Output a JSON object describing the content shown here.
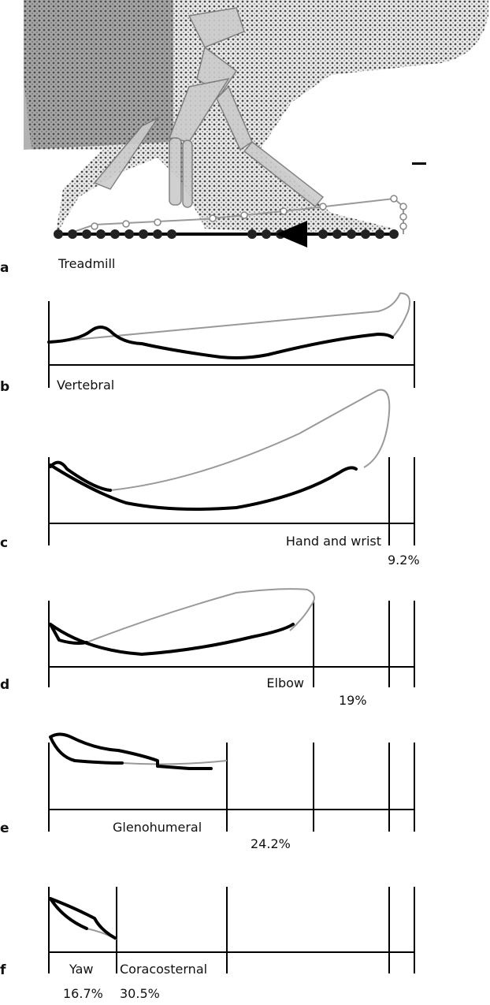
{
  "panels": [
    {
      "letter": "a",
      "label": "Treadmill"
    },
    {
      "letter": "b",
      "label": "Vertebral"
    },
    {
      "letter": "c",
      "label": "Hand and wrist",
      "percent": "9.2%"
    },
    {
      "letter": "d",
      "label": "Elbow",
      "percent": "19%"
    },
    {
      "letter": "e",
      "label": "Glenohumeral",
      "percent": "24.2%"
    },
    {
      "letter": "f",
      "label": "Yaw",
      "percent": "16.7%",
      "label2": "Coracosternal",
      "percent2": "30.5%"
    }
  ]
}
